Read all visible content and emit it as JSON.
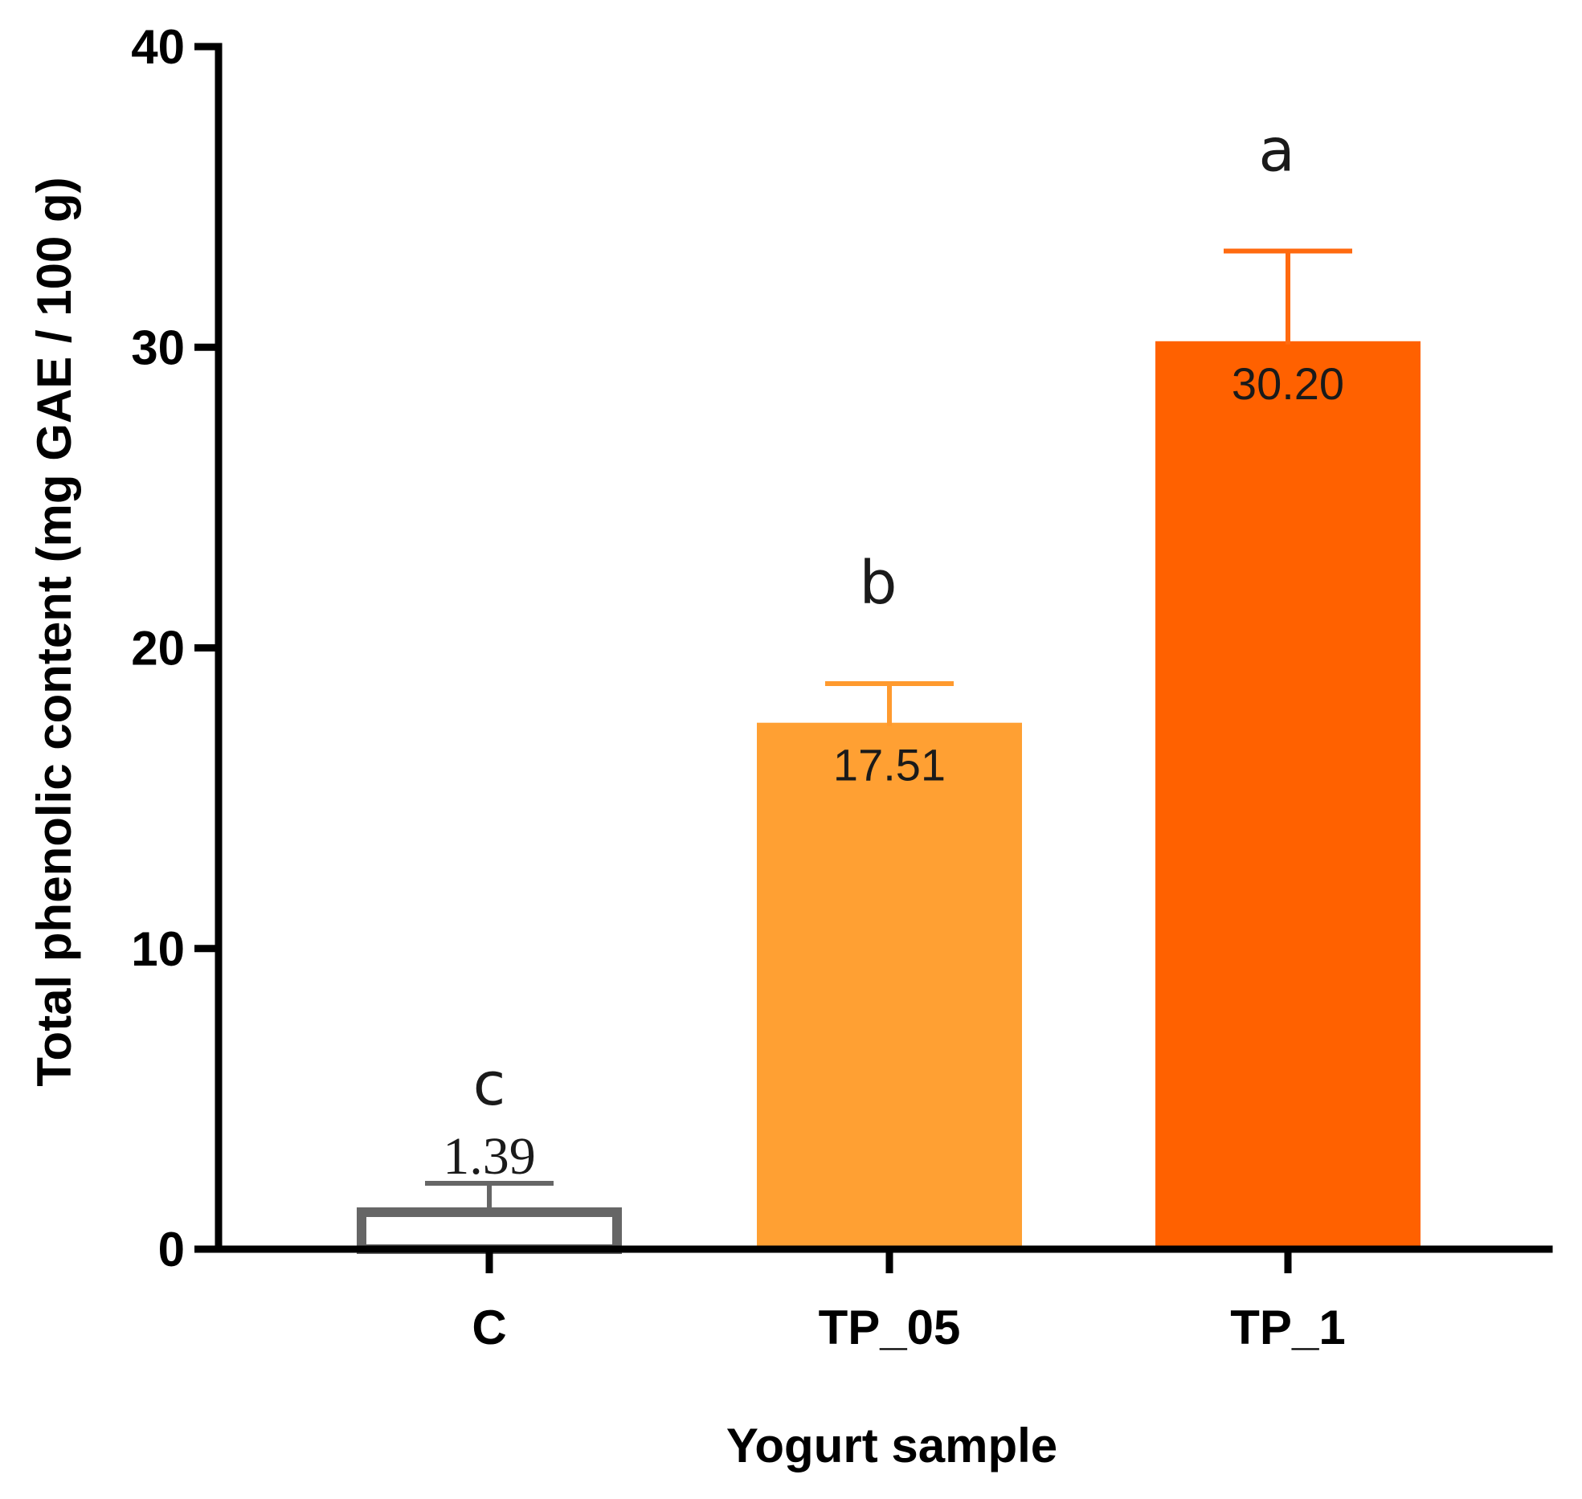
{
  "chart_data": {
    "type": "bar",
    "title": "",
    "xlabel": "Yogurt sample",
    "ylabel": "Total phenolic content (mg GAE / 100 g)",
    "ylim": [
      0,
      40
    ],
    "yticks": [
      0,
      10,
      20,
      30,
      40
    ],
    "ytick_labels": [
      "0",
      "10",
      "20",
      "30",
      "40"
    ],
    "categories": [
      "C",
      "TP_05",
      "TP_1"
    ],
    "values": [
      1.39,
      17.51,
      30.2
    ],
    "value_labels": [
      "1.39",
      "17.51",
      "30.20"
    ],
    "errors": [
      0.8,
      1.3,
      3.0
    ],
    "group_letters": [
      "c",
      "b",
      "a"
    ],
    "colors": {
      "fills": [
        "#ffffff",
        "#ffa033",
        "#ff6100"
      ],
      "outlines": [
        "#666666",
        "#ffa033",
        "#ff6100"
      ],
      "error_bars": [
        "#666666",
        "#ff9a2e",
        "#ff6a10"
      ],
      "axis": "#000000",
      "text": "#1a1a1a"
    },
    "grid": false,
    "legend": "none"
  }
}
